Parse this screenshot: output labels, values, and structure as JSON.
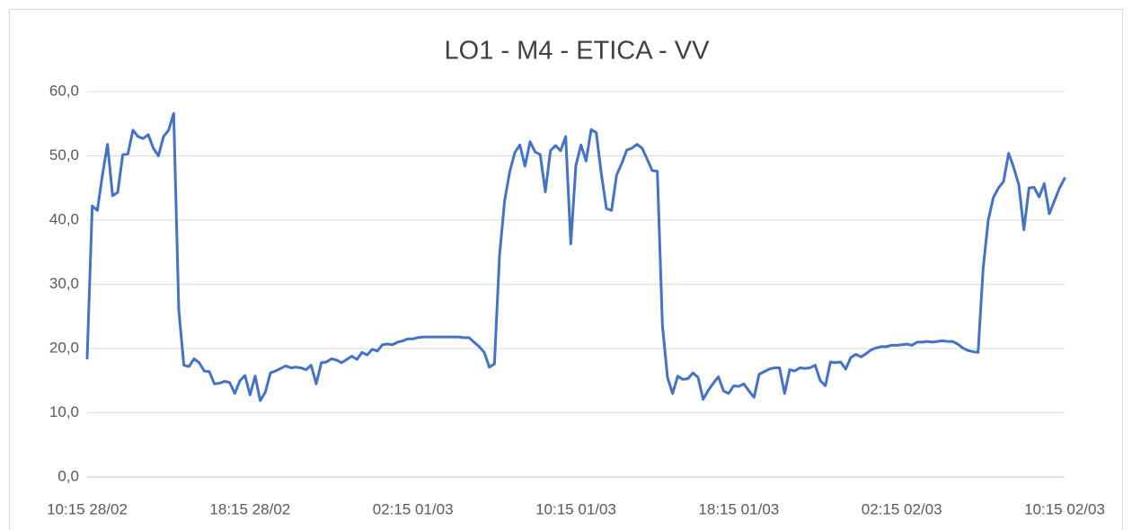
{
  "chart_data": {
    "type": "line",
    "title": "LO1 - M4 - ETICA - VV",
    "categories": [
      "10:15 28/02",
      null,
      null,
      null,
      null,
      null,
      null,
      null,
      null,
      null,
      null,
      null,
      null,
      null,
      null,
      null,
      null,
      null,
      null,
      null,
      null,
      null,
      null,
      null,
      null,
      null,
      null,
      null,
      null,
      null,
      null,
      null,
      "18:15 28/02",
      null,
      null,
      null,
      null,
      null,
      null,
      null,
      null,
      null,
      null,
      null,
      null,
      null,
      null,
      null,
      null,
      null,
      null,
      null,
      null,
      null,
      null,
      null,
      null,
      null,
      null,
      null,
      null,
      null,
      null,
      null,
      "02:15 01/03",
      null,
      null,
      null,
      null,
      null,
      null,
      null,
      null,
      null,
      null,
      null,
      null,
      null,
      null,
      null,
      null,
      null,
      null,
      null,
      null,
      null,
      null,
      null,
      null,
      null,
      null,
      null,
      null,
      null,
      null,
      null,
      "10:15 01/03",
      null,
      null,
      null,
      null,
      null,
      null,
      null,
      null,
      null,
      null,
      null,
      null,
      null,
      null,
      null,
      null,
      null,
      null,
      null,
      null,
      null,
      null,
      null,
      null,
      null,
      null,
      null,
      null,
      null,
      null,
      null,
      "18:15 01/03",
      null,
      null,
      null,
      null,
      null,
      null,
      null,
      null,
      null,
      null,
      null,
      null,
      null,
      null,
      null,
      null,
      null,
      null,
      null,
      null,
      null,
      null,
      null,
      null,
      null,
      null,
      null,
      null,
      null,
      null,
      null,
      "02:15 02/03",
      null,
      null,
      null,
      null,
      null,
      null,
      null,
      null,
      null,
      null,
      null,
      null,
      null,
      null,
      null,
      null,
      null,
      null,
      null,
      null,
      null,
      null,
      null,
      null,
      null,
      null,
      null,
      null,
      null,
      null,
      null,
      "10:15 02/03"
    ],
    "values": [
      18.5,
      42.2,
      41.5,
      47,
      51.8,
      43.8,
      44.3,
      50.2,
      50.3,
      54,
      53,
      52.7,
      53.3,
      51.2,
      50,
      53,
      54,
      56.6,
      26,
      17.4,
      17.2,
      18.4,
      17.8,
      16.5,
      16.4,
      14.5,
      14.6,
      14.9,
      14.7,
      13,
      15,
      15.8,
      12.8,
      15.7,
      11.9,
      13.2,
      16.2,
      16.5,
      16.9,
      17.3,
      17,
      17.1,
      17,
      16.7,
      17.4,
      14.5,
      17.8,
      17.9,
      18.4,
      18.2,
      17.8,
      18.3,
      18.8,
      18.3,
      19.4,
      19,
      19.9,
      19.6,
      20.6,
      20.7,
      20.6,
      21,
      21.2,
      21.5,
      21.5,
      21.7,
      21.8,
      21.8,
      21.8,
      21.8,
      21.8,
      21.8,
      21.8,
      21.8,
      21.7,
      21.7,
      21,
      20.3,
      19.4,
      17.1,
      17.6,
      34.5,
      43,
      47.5,
      50.5,
      51.7,
      48.4,
      52.2,
      50.6,
      50.2,
      44.4,
      50.8,
      51.6,
      50.8,
      53,
      36.3,
      48.5,
      51.7,
      49.2,
      54.1,
      53.6,
      47.2,
      41.8,
      41.5,
      47,
      48.8,
      50.9,
      51.2,
      51.8,
      51.2,
      49.5,
      47.7,
      47.6,
      23.6,
      15.5,
      13,
      15.7,
      15.2,
      15.3,
      16.2,
      15.5,
      12.1,
      13.5,
      14.6,
      15.6,
      13.4,
      13,
      14.2,
      14.1,
      14.5,
      13.4,
      12.4,
      16,
      16.4,
      16.8,
      17,
      17,
      13,
      16.7,
      16.5,
      17,
      16.9,
      17,
      17.4,
      15,
      14.2,
      17.9,
      17.8,
      17.9,
      16.8,
      18.6,
      19.1,
      18.7,
      19.2,
      19.8,
      20.1,
      20.3,
      20.3,
      20.5,
      20.5,
      20.6,
      20.7,
      20.5,
      21,
      21,
      21.1,
      21,
      21.1,
      21.2,
      21.1,
      21.1,
      20.7,
      20.1,
      19.7,
      19.5,
      19.4,
      32.5,
      40,
      43.5,
      45,
      46,
      50.4,
      48.2,
      45.5,
      38.5,
      45,
      45.1,
      43.6,
      45.7,
      41,
      43,
      45,
      46.5
    ],
    "color": "#4472c4",
    "ylim": [
      0,
      60
    ],
    "yticks": [
      {
        "value": 0,
        "label": "0,0"
      },
      {
        "value": 10,
        "label": "10,0"
      },
      {
        "value": 20,
        "label": "20,0"
      },
      {
        "value": 30,
        "label": "30,0"
      },
      {
        "value": 40,
        "label": "40,0"
      },
      {
        "value": 50,
        "label": "50,0"
      },
      {
        "value": 60,
        "label": "60,0"
      }
    ],
    "grid": true
  }
}
